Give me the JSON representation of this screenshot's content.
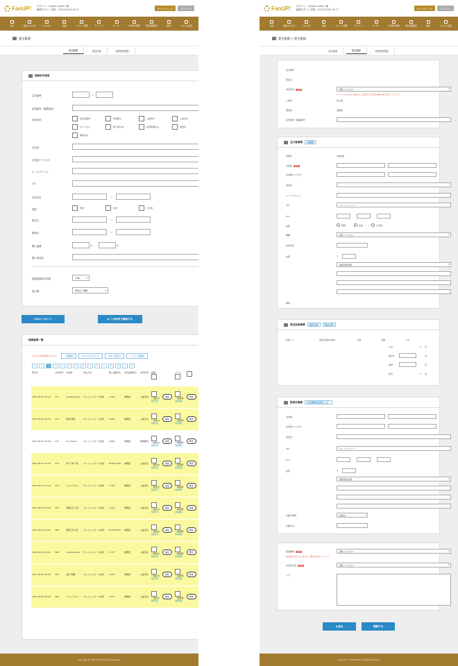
{
  "header": {
    "logo": "FanUP!",
    "login_left": "ログイン：System Admin 様",
    "last_login_left": "最終ログイン日時：2021/05/04 14:17",
    "login_right": "ログイン：System Admin 様",
    "last_login_right": "最終ログイン日時：2021/05/04 14:17",
    "site_check": "サイトチェック",
    "logout": "ログアウト"
  },
  "nav": [
    "注文",
    "商品/カタログ",
    "メルマガ",
    "会員",
    "イベント管理",
    "アンケート",
    "ユーザー",
    "その他の管理",
    "配信管理設定",
    "帳票",
    "システム設定"
  ],
  "left": {
    "page_title": "受注管理",
    "steps": [
      "受注管理",
      "発送情報",
      "帳票発送履歴"
    ],
    "search": {
      "heading": "検索条件設定",
      "order_no": "注文番号",
      "order_no_range_sep": "～",
      "member_no": "会員番号（複数指定）",
      "status_label": "対応状況",
      "statuses": [
        "注文処理中",
        "新規受付",
        "入金待ち",
        "入金済み",
        "キャンセル",
        "取り寄せ中",
        "出荷準備込み",
        "発送済",
        "発送済み"
      ],
      "name": "お名前",
      "kana": "お名前(フリガナ)",
      "email": "メールアドレス",
      "tel": "TEL",
      "birthday": "生年月日",
      "gender": "性別",
      "genders": [
        "男性",
        "女性",
        "その他"
      ],
      "order_date": "受注日",
      "update_date": "更新日",
      "amount": "購入金額",
      "amount_unit": "円",
      "product": "購入商品名",
      "per_page_label": "検索結果表示件数",
      "per_page": "10件",
      "sort_label": "並び順",
      "sort": "受注日：降順",
      "range_sep": "～"
    },
    "csv_import": "CSVインポート",
    "search_button": "▶ この条件で検索する",
    "results": {
      "heading": "検索結果一覧",
      "count_text": "12,679 件が該当しました。",
      "bulk_buttons": [
        "一括発送",
        "CSV ダウンロード",
        "PDF一括出力",
        "メール一括通知"
      ],
      "pages": [
        "<<",
        "<",
        "1",
        "2",
        "3",
        "4",
        "5",
        "6",
        "7",
        "8",
        "...",
        "11",
        "12",
        ">",
        ">>"
      ],
      "columns": [
        "受注日",
        "注文番号",
        "お名前",
        "支払方法",
        "購入金額(円)",
        "全商品発送日",
        "対応状況",
        "帳票",
        "",
        "メール"
      ],
      "rows": [
        {
          "date": "2021-04-07 15:44",
          "no": "271",
          "name": "kiyataka test",
          "pay": "クレジットカード決済",
          "amount": "1,334",
          "ship": "未発送",
          "status": "入金済み",
          "y": true
        },
        {
          "date": "2021-05-06 10:39",
          "no": "273",
          "name": "西村 悠真",
          "pay": "クレジットカード決済",
          "amount": "8,456",
          "ship": "未発送",
          "status": "入金済み",
          "y": true
        },
        {
          "date": "2021-04-10 10:54",
          "no": "272",
          "name": "hoi rtewer",
          "pay": "クレジットカード決済",
          "amount": "2,836",
          "ship": "未発送",
          "status": "新規受付",
          "y": false
        },
        {
          "date": "2021-04-12 15:20",
          "no": "274",
          "name": "木下 洋介 様",
          "pay": "クレジットカード決済",
          "amount": "50,660.598",
          "ship": "未発送",
          "status": "入金済み",
          "y": true
        },
        {
          "date": "2021-04-07 17:10",
          "no": "272",
          "name": "ミドリテスト",
          "pay": "クレジットカード決済",
          "amount": "1,334",
          "ship": "未発送",
          "status": "入金済み",
          "y": true
        },
        {
          "date": "2021-04-06 14:45",
          "no": "255",
          "name": "高橋 正人 様",
          "pay": "クレジットカード決済",
          "amount": "2,334",
          "ship": "未発送",
          "status": "入金済み",
          "y": true
        },
        {
          "date": "2021-04-06 13:47",
          "no": "269",
          "name": "眞田 正文 様",
          "pay": "クレジットカード決済",
          "amount": "50,660.603",
          "ship": "未発送",
          "status": "入金済み",
          "y": true
        },
        {
          "date": "2021-04-05 22:41",
          "no": "268",
          "name": "kiyataka test",
          "pay": "クレジットカード決済",
          "amount": "1,737",
          "ship": "未発送",
          "status": "入金済み",
          "y": true
        },
        {
          "date": "2021-04-05 18:44",
          "no": "267",
          "name": "倉片 真理",
          "pay": "クレジットカード決済",
          "amount": "2,134",
          "ship": "未発送",
          "status": "入金済み",
          "y": true
        },
        {
          "date": "2021-04-05 16:40",
          "no": "266",
          "name": "ミドリテスト",
          "pay": "クレジットカード決済",
          "amount": "3,777",
          "ship": "未発送",
          "status": "入金済み",
          "y": true
        }
      ],
      "pdf_label": "一括出力",
      "pdf_link": "個別出力",
      "edit": "編集",
      "mail_label": "一括通知",
      "mail_link": "個別通知",
      "detail": "発送"
    },
    "copyright": "Copyright © 2000-2021 All Rights Reserved."
  },
  "right": {
    "page_title": "受注管理 > 受注登録",
    "steps": [
      "受注管理",
      "受注登録",
      "帳票発送履歴"
    ],
    "basic": {
      "fields": [
        "注文番号",
        "受注日",
        "対応状況",
        "入金日",
        "発送日",
        "記号番号（追跡番号）"
      ],
      "status_select": "選択してください",
      "status_warning": "※ キャンセルまたは「返品済み」に変更する場合は在庫数を手動で修正してください。",
      "not_paid": "未入金",
      "not_shipped": "未発送"
    },
    "customer": {
      "heading": "注文者情報",
      "tag": "会員検索",
      "fields": [
        "会員ID",
        "お名前",
        "お名前(フリガナ)",
        "会社名",
        "メールアドレス",
        "TEL",
        "FAX",
        "性別",
        "職業",
        "生年月日",
        "住所",
        "備考"
      ],
      "member_value": "(非会員)",
      "tel_placeholder": "000-1234-5678",
      "genders": [
        "男性",
        "女性",
        "その他"
      ],
      "job_select": "選択してください",
      "pref_select": "都道府県を選択",
      "zip_mark": "〒"
    },
    "products": {
      "heading": "受注商品情報",
      "tags": [
        "商品の追加",
        "商品を追加"
      ],
      "columns": [
        "商品コード",
        "商品名/規格1/規格2",
        "単価",
        "数量",
        "小計"
      ],
      "summary": [
        {
          "label": "小計",
          "value": "0",
          "unit": "円"
        },
        {
          "label": "値引き",
          "value": "0",
          "unit": "円"
        },
        {
          "label": "送料",
          "value": "0",
          "unit": "円"
        },
        {
          "label": "合計",
          "value": "0",
          "unit": "円"
        }
      ]
    },
    "shipping": {
      "heading": "配送先情報",
      "tag": "注文者情報を配送先にコピー",
      "fields": [
        "お名前",
        "お名前(フリガナ)",
        "会社名",
        "TEL",
        "FAX",
        "住所",
        "お届け時間",
        "お届け日"
      ],
      "tel_placeholder": "000-1234-5678",
      "time_select": "指定無し",
      "pref_select": "都道府県を選択",
      "zip_mark": "〒"
    },
    "payment": {
      "fields": [
        "配送業者",
        "お支払方法",
        "メモ"
      ],
      "carrier_note": "配送業者が指定された場合は、金額を再計算してください。",
      "select": "選択してください"
    },
    "back_button": "◀ 戻る",
    "register_button": "登録する",
    "copyright": "Copyright © 2000-2021 All Rights Reserved."
  }
}
